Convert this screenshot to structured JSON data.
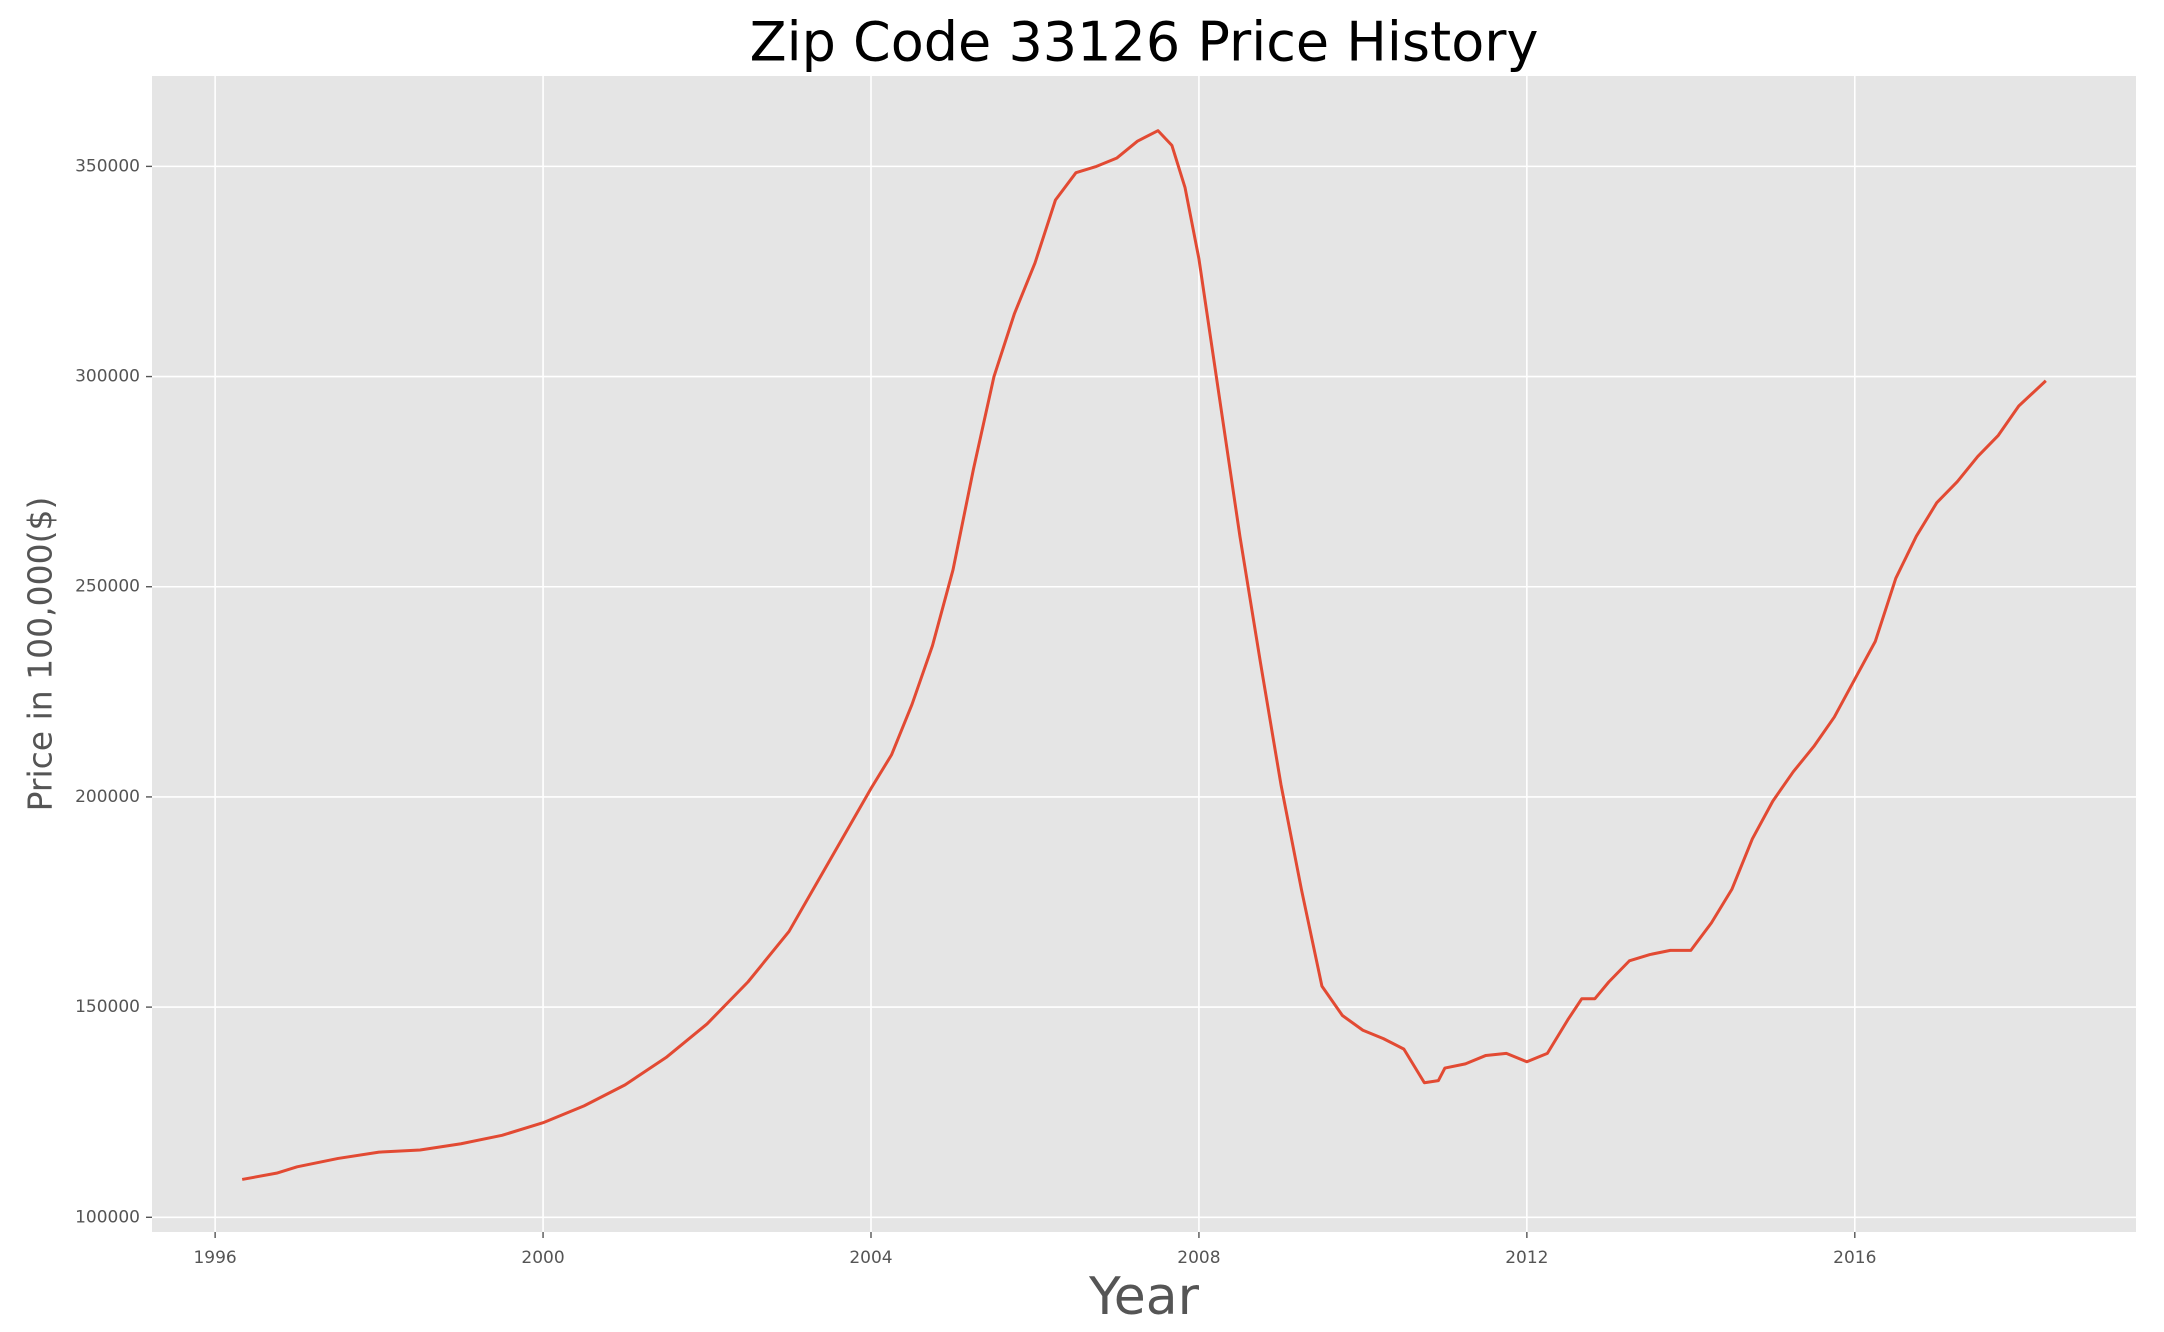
{
  "chart_data": {
    "type": "line",
    "title": "Zip Code 33126 Price History",
    "x_label": "Year",
    "y_label": "Price in 100,000($)",
    "x": [
      1996.33,
      1996.75,
      1997.0,
      1997.5,
      1998.0,
      1998.5,
      1999.0,
      1999.5,
      2000.0,
      2000.5,
      2001.0,
      2001.5,
      2002.0,
      2002.5,
      2003.0,
      2003.5,
      2004.0,
      2004.25,
      2004.5,
      2004.75,
      2005.0,
      2005.25,
      2005.5,
      2005.75,
      2006.0,
      2006.25,
      2006.5,
      2006.75,
      2007.0,
      2007.25,
      2007.5,
      2007.67,
      2007.83,
      2008.0,
      2008.25,
      2008.5,
      2008.75,
      2009.0,
      2009.25,
      2009.5,
      2009.75,
      2010.0,
      2010.25,
      2010.5,
      2010.75,
      2010.92,
      2011.0,
      2011.25,
      2011.5,
      2011.75,
      2012.0,
      2012.25,
      2012.5,
      2012.67,
      2012.83,
      2013.0,
      2013.25,
      2013.5,
      2013.75,
      2014.0,
      2014.25,
      2014.5,
      2014.75,
      2015.0,
      2015.25,
      2015.5,
      2015.75,
      2016.0,
      2016.25,
      2016.5,
      2016.75,
      2017.0,
      2017.25,
      2017.5,
      2017.75,
      2018.0,
      2018.33
    ],
    "series": [
      {
        "name": "Price",
        "color": "#E24A33",
        "values": [
          109000,
          110500,
          112000,
          114000,
          115500,
          116000,
          117500,
          119500,
          122500,
          126500,
          131500,
          138000,
          146000,
          156000,
          168000,
          185000,
          202000,
          210000,
          222000,
          236000,
          254000,
          278000,
          300000,
          315000,
          327000,
          342000,
          348500,
          350000,
          352000,
          356000,
          358500,
          355000,
          345000,
          328000,
          295000,
          262000,
          232000,
          203000,
          178000,
          155000,
          148000,
          144500,
          142500,
          140000,
          132000,
          132500,
          135500,
          136500,
          138500,
          139000,
          137000,
          139000,
          147000,
          152000,
          152000,
          156000,
          161000,
          162500,
          163500,
          163500,
          170000,
          178000,
          190000,
          199000,
          206000,
          212000,
          219000,
          228000,
          237000,
          252000,
          262000,
          270000,
          275000,
          281000,
          286000,
          293000,
          299000
        ]
      }
    ],
    "xlim": [
      1995.23,
      2019.43
    ],
    "xticks": [
      1996,
      2000,
      2004,
      2008,
      2012,
      2016
    ],
    "ylim": [
      96500,
      371500
    ],
    "yticks": [
      100000,
      150000,
      200000,
      250000,
      300000,
      350000
    ],
    "grid": true
  }
}
